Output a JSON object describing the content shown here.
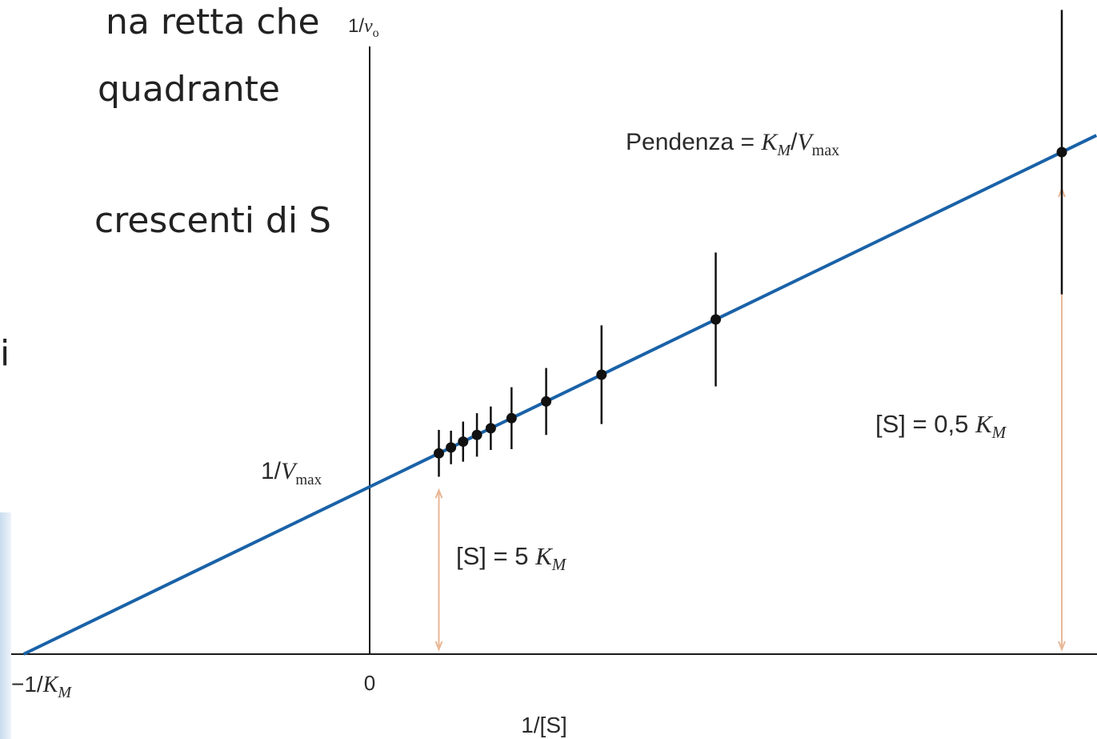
{
  "slide_text": [
    "na retta che",
    "quadrante",
    "crescenti di S",
    "i"
  ],
  "colors": {
    "line": "#1a62a8",
    "axis": "#1a1a1a",
    "point": "#111111",
    "arrow": "#e9b795",
    "text": "#2a2a2a"
  },
  "chart_data": {
    "type": "line",
    "title": "",
    "axes": {
      "x": {
        "label": "1/[S]",
        "origin_label": "0",
        "intercept_label": {
          "prefix": "−1/",
          "italic": "K",
          "sub": "M"
        }
      },
      "y": {
        "label": {
          "prefix": "1/",
          "italic": "v",
          "sub": "o"
        },
        "intercept_label": {
          "prefix": "1/",
          "italic": "V",
          "sub": "max"
        }
      }
    },
    "line": {
      "description": "Lineweaver-Burk double reciprocal plot",
      "y_intercept": 1,
      "slope": 1,
      "x_intercept": -1,
      "x_range": [
        -1,
        2.1
      ]
    },
    "x_range": [
      -1.07,
      2.1
    ],
    "y_range": [
      0,
      4.5
    ],
    "points": [
      {
        "x": 0.2,
        "err": 0.28
      },
      {
        "x": 0.235,
        "err": 0.2
      },
      {
        "x": 0.27,
        "err": 0.24
      },
      {
        "x": 0.31,
        "err": 0.26
      },
      {
        "x": 0.35,
        "err": 0.26
      },
      {
        "x": 0.41,
        "err": 0.37
      },
      {
        "x": 0.51,
        "err": 0.4
      },
      {
        "x": 0.67,
        "err": 0.59
      },
      {
        "x": 1.0,
        "err": 0.8
      },
      {
        "x": 2.0,
        "err": 1.7
      }
    ],
    "annotations": {
      "slope": {
        "text": "Pendenza = ",
        "italic1": "K",
        "sub1": "M",
        "slash": "/",
        "italic2": "V",
        "sub2": "max"
      },
      "low_substrate": {
        "text": "[S] = 0,5 ",
        "italic": "K",
        "sub": "M",
        "x": 2.0
      },
      "high_substrate": {
        "text": "[S] = 5 ",
        "italic": "K",
        "sub": "M",
        "x": 0.2
      }
    }
  }
}
